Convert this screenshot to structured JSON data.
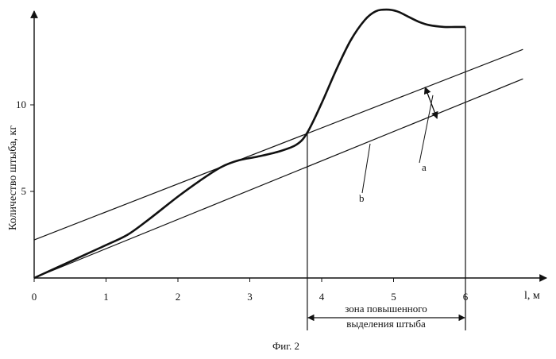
{
  "chart_data": {
    "type": "line",
    "caption": "Фиг. 2",
    "xlabel": "l, м",
    "ylabel": "Количество штыба, кг",
    "xlim": [
      0,
      6.8
    ],
    "ylim": [
      0,
      15.5
    ],
    "x_ticks": [
      0,
      1,
      2,
      3,
      4,
      5,
      6
    ],
    "y_ticks": [
      5,
      10
    ],
    "grid": false,
    "colors": {
      "ink": "#111111",
      "background": "#ffffff"
    },
    "series": [
      {
        "x": [
          0,
          0.5,
          1.0,
          1.3,
          1.6,
          2.0,
          2.3,
          2.6,
          2.85,
          3.1,
          3.4,
          3.65,
          3.8,
          4.0,
          4.2,
          4.4,
          4.6,
          4.75,
          4.9,
          5.05,
          5.2,
          5.35,
          5.5,
          5.7,
          5.85,
          6.0
        ],
        "y": [
          0,
          0.95,
          1.9,
          2.5,
          3.4,
          4.7,
          5.6,
          6.4,
          6.8,
          7.0,
          7.3,
          7.7,
          8.4,
          10.1,
          12.0,
          13.7,
          14.9,
          15.4,
          15.5,
          15.4,
          15.1,
          14.8,
          14.6,
          14.5,
          14.5,
          14.5
        ]
      },
      {
        "name": "a",
        "x": [
          0,
          6.8
        ],
        "y": [
          2.2,
          13.2
        ]
      },
      {
        "name": "b",
        "x": [
          0,
          6.8
        ],
        "y": [
          0,
          11.5
        ]
      }
    ],
    "annotations": [
      {
        "text": "зона повышенного",
        "x_range": [
          3.8,
          6.0
        ]
      },
      {
        "text": "выделения штыба",
        "x_range": [
          3.8,
          6.0
        ]
      }
    ]
  }
}
